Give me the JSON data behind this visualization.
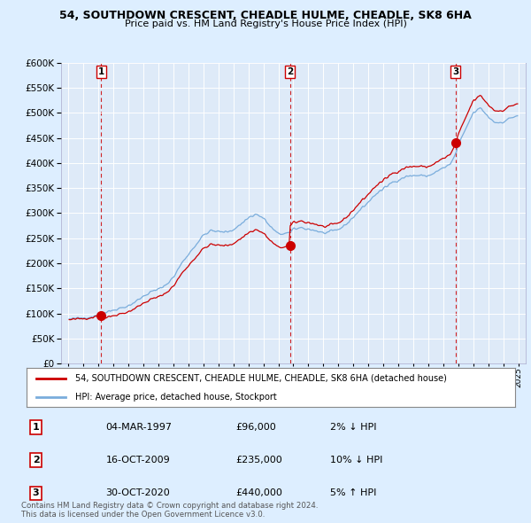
{
  "title_line1": "54, SOUTHDOWN CRESCENT, CHEADLE HULME, CHEADLE, SK8 6HA",
  "title_line2": "Price paid vs. HM Land Registry's House Price Index (HPI)",
  "sale_dates": [
    1997.17,
    2009.79,
    2020.83
  ],
  "sale_prices": [
    96000,
    235000,
    440000
  ],
  "sale_labels": [
    "1",
    "2",
    "3"
  ],
  "ylim": [
    0,
    600000
  ],
  "yticks": [
    0,
    50000,
    100000,
    150000,
    200000,
    250000,
    300000,
    350000,
    400000,
    450000,
    500000,
    550000,
    600000
  ],
  "xlim": [
    1994.5,
    2025.5
  ],
  "xticks": [
    1995,
    1996,
    1997,
    1998,
    1999,
    2000,
    2001,
    2002,
    2003,
    2004,
    2005,
    2006,
    2007,
    2008,
    2009,
    2010,
    2011,
    2012,
    2013,
    2014,
    2015,
    2016,
    2017,
    2018,
    2019,
    2020,
    2021,
    2022,
    2023,
    2024,
    2025
  ],
  "hpi_color": "#7aaddc",
  "property_color": "#cc0000",
  "sale_marker_color": "#cc0000",
  "dashed_line_color": "#cc0000",
  "background_color": "#ddeeff",
  "plot_bg_color": "#deeaf8",
  "grid_color": "#ffffff",
  "legend_label_property": "54, SOUTHDOWN CRESCENT, CHEADLE HULME, CHEADLE, SK8 6HA (detached house)",
  "legend_label_hpi": "HPI: Average price, detached house, Stockport",
  "table_rows": [
    {
      "num": "1",
      "date": "04-MAR-1997",
      "price": "£96,000",
      "pct": "2% ↓ HPI"
    },
    {
      "num": "2",
      "date": "16-OCT-2009",
      "price": "£235,000",
      "pct": "10% ↓ HPI"
    },
    {
      "num": "3",
      "date": "30-OCT-2020",
      "price": "£440,000",
      "pct": "5% ↑ HPI"
    }
  ],
  "footer": "Contains HM Land Registry data © Crown copyright and database right 2024.\nThis data is licensed under the Open Government Licence v3.0."
}
